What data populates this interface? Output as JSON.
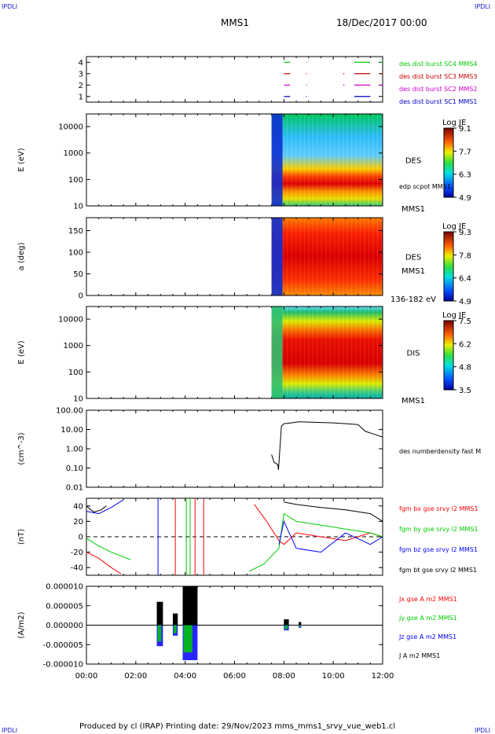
{
  "header": {
    "corner_left": "IPDLI",
    "corner_right": "IPDLI",
    "spacecraft": "MMS1",
    "date": "18/Dec/2017 00:00"
  },
  "footer": {
    "text": "Produced by cl (IRAP)   Printing date: 29/Nov/2023   mms_mms1_srvy_vue_web1.cl",
    "corner_left": "IPDLI",
    "corner_right": "IPDLI"
  },
  "chart_data": [
    {
      "type": "scatter",
      "panel": "burst",
      "ylim": [
        0.5,
        4.5
      ],
      "yticks": [
        "1",
        "2",
        "3",
        "4"
      ],
      "series": [
        {
          "name": "des dist burst SC1 MMS1",
          "y": 1,
          "color": "#0000cc",
          "segments": [
            [
              8.0,
              8.25
            ],
            [
              8.9,
              8.93
            ],
            [
              10.85,
              11.5
            ]
          ]
        },
        {
          "name": "des dist burst SC2 MMS2",
          "y": 2,
          "color": "#cc00cc",
          "segments": [
            [
              8.0,
              8.25
            ],
            [
              8.9,
              8.93
            ],
            [
              10.4,
              10.45
            ],
            [
              10.85,
              11.5
            ],
            [
              11.9,
              12.0
            ]
          ]
        },
        {
          "name": "des dist burst SC3 MMS3",
          "y": 3,
          "color": "#cc0000",
          "segments": [
            [
              8.0,
              8.25
            ],
            [
              8.9,
              8.93
            ],
            [
              10.4,
              10.45
            ],
            [
              10.85,
              11.5
            ],
            [
              11.9,
              12.0
            ]
          ]
        },
        {
          "name": "des dist burst SC4 MMS4",
          "y": 4,
          "color": "#00cc00",
          "segments": [
            [
              8.0,
              8.25
            ],
            [
              8.9,
              8.93
            ],
            [
              10.85,
              11.5
            ],
            [
              11.9,
              12.0
            ]
          ]
        }
      ]
    },
    {
      "type": "heatmap",
      "panel": "des_energy",
      "ylabel": "E (eV)",
      "yscale": "log",
      "ylim": [
        10,
        30000
      ],
      "yticks": [
        "10",
        "100",
        "1000",
        "10000"
      ],
      "label": "DES",
      "label2": "edp scpot MMS1",
      "label3": "MMS1",
      "colorbar": {
        "title": "Log JE",
        "ticks": [
          "9.1",
          "7.7",
          "6.3",
          "4.9"
        ]
      },
      "data_start_hours": 7.5
    },
    {
      "type": "heatmap",
      "panel": "des_pitch",
      "ylabel": "a (deg)",
      "ylim": [
        0,
        180
      ],
      "yticks": [
        "0",
        "50",
        "100",
        "150"
      ],
      "label": "DES",
      "label2": "MMS1",
      "label3": "136-182 eV",
      "colorbar": {
        "title": "Log JE",
        "ticks": [
          "9.3",
          "7.8",
          "6.4",
          "4.9"
        ]
      },
      "data_start_hours": 7.5
    },
    {
      "type": "heatmap",
      "panel": "dis_energy",
      "ylabel": "E (eV)",
      "yscale": "log",
      "ylim": [
        10,
        30000
      ],
      "yticks": [
        "10",
        "100",
        "1000",
        "10000"
      ],
      "label": "DIS",
      "label2": "MMS1",
      "colorbar": {
        "title": "Log JE",
        "ticks": [
          "7.5",
          "6.2",
          "4.8",
          "3.5"
        ]
      },
      "data_start_hours": 7.5
    },
    {
      "type": "line",
      "panel": "density",
      "ylabel": "(cm^-3)",
      "yscale": "log",
      "ylim": [
        0.01,
        100
      ],
      "yticks": [
        "0.01",
        "0.10",
        "1.00",
        "10.00",
        "100.00"
      ],
      "series": [
        {
          "name": "des numberdensity fast M",
          "color": "#000000",
          "x": [
            7.5,
            7.6,
            7.75,
            7.78,
            7.9,
            8.0,
            8.3,
            8.6,
            9.0,
            9.5,
            10.0,
            10.5,
            11.0,
            11.3,
            11.6,
            12.0
          ],
          "y": [
            0.5,
            0.2,
            0.15,
            0.08,
            15,
            20,
            22,
            25,
            24,
            23,
            22,
            20,
            18,
            8,
            6,
            4
          ]
        }
      ]
    },
    {
      "type": "line",
      "panel": "fgm",
      "ylabel": "(nT)",
      "ylim": [
        -50,
        50
      ],
      "yticks": [
        "-40",
        "-20",
        "0",
        "20",
        "40"
      ],
      "series": [
        {
          "name": "fgm bx gse srvy l2 MMS1",
          "color": "#ff0000",
          "x": [
            0,
            0.5,
            1.0,
            1.4,
            6.8,
            7.3,
            7.8,
            8.0,
            8.5,
            9.5,
            10.5,
            11.5,
            12.0
          ],
          "y": [
            -20,
            -28,
            -40,
            -48,
            42,
            20,
            -5,
            -10,
            5,
            0,
            -5,
            5,
            0
          ]
        },
        {
          "name": "fgm by gse srvy l2 MMS1",
          "color": "#00cc00",
          "x": [
            0,
            0.5,
            1.0,
            1.8,
            6.6,
            7.2,
            7.8,
            8.0,
            8.5,
            9.5,
            10.5,
            11.5,
            12.0
          ],
          "y": [
            -2,
            -12,
            -20,
            -30,
            -45,
            -35,
            -15,
            30,
            20,
            15,
            10,
            5,
            0
          ]
        },
        {
          "name": "fgm bz gse srvy l2 MMS1",
          "color": "#0000ff",
          "x": [
            0,
            0.5,
            1.0,
            1.5,
            7.8,
            8.0,
            8.5,
            9.5,
            10.5,
            11.5,
            12.0
          ],
          "y": [
            33,
            30,
            38,
            48,
            -10,
            20,
            -15,
            -20,
            5,
            -10,
            0
          ]
        },
        {
          "name": "fgm bt gse srvy l2 MMS1",
          "color": "#000000",
          "x": [
            0,
            0.3,
            0.6,
            0.8,
            8.0,
            8.5,
            9.5,
            10.5,
            11.5,
            12.0
          ],
          "y": [
            40,
            32,
            35,
            40,
            45,
            42,
            38,
            35,
            30,
            20
          ]
        }
      ],
      "reference_line": 0
    },
    {
      "type": "line",
      "panel": "current",
      "ylabel": "(A/m2)",
      "ylim": [
        -1e-05,
        1e-05
      ],
      "yticks": [
        "-0.000010",
        "-0.000005",
        "0.000000",
        "0.000005",
        "0.000010"
      ],
      "xticks": [
        "00:00",
        "02:00",
        "04:00",
        "06:00",
        "08:00",
        "10:00",
        "12:00"
      ],
      "xlim": [
        0,
        12
      ],
      "series": [
        {
          "name": "Jx gse A m2 MMS1",
          "color": "#ff0000"
        },
        {
          "name": "Jy gse A m2 MMS1",
          "color": "#00cc00"
        },
        {
          "name": "Jz gse A m2 MMS1",
          "color": "#0000ff"
        },
        {
          "name": "J A m2 MMS1",
          "color": "#000000"
        }
      ]
    }
  ]
}
